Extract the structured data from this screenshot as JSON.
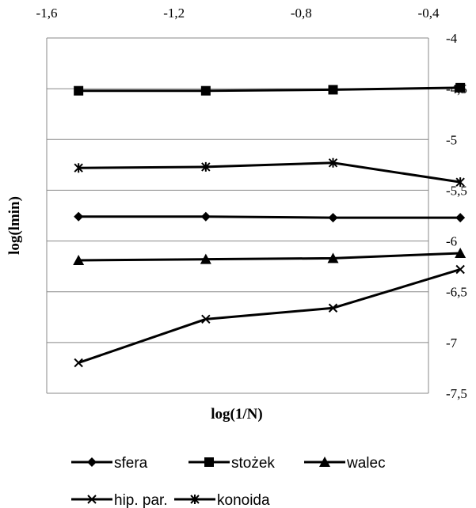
{
  "chart_data": {
    "type": "line",
    "xlabel": "log(1/N)",
    "ylabel": "log(lmin)",
    "x_axis_position": "top",
    "y_axis_position": "right",
    "xlim": [
      -1.6,
      -0.4
    ],
    "ylim": [
      -7.5,
      -4.0
    ],
    "x_ticks": [
      "-1,6",
      "-1,2",
      "-0,8",
      "-0,4"
    ],
    "y_ticks": [
      "-4",
      "-4,5",
      "-5",
      "-5,5",
      "-6",
      "-6,5",
      "-7",
      "-7,5"
    ],
    "grid": "horizontal",
    "x": [
      -1.5,
      -1.1,
      -0.7,
      -0.3
    ],
    "series": [
      {
        "name": "sfera",
        "marker": "diamond",
        "values": [
          -5.76,
          -5.76,
          -5.77,
          -5.77
        ]
      },
      {
        "name": "stożek",
        "marker": "square",
        "values": [
          -4.52,
          -4.52,
          -4.51,
          -4.49
        ]
      },
      {
        "name": "walec",
        "marker": "triangle",
        "values": [
          -6.19,
          -6.18,
          -6.17,
          -6.12
        ]
      },
      {
        "name": "hip. par.",
        "marker": "x",
        "values": [
          -7.2,
          -6.77,
          -6.66,
          -6.28
        ]
      },
      {
        "name": "konoida",
        "marker": "star",
        "values": [
          -5.28,
          -5.27,
          -5.23,
          -5.42
        ]
      }
    ],
    "legend_position": "bottom",
    "line_color": "#000000",
    "grid_color": "#888888"
  }
}
